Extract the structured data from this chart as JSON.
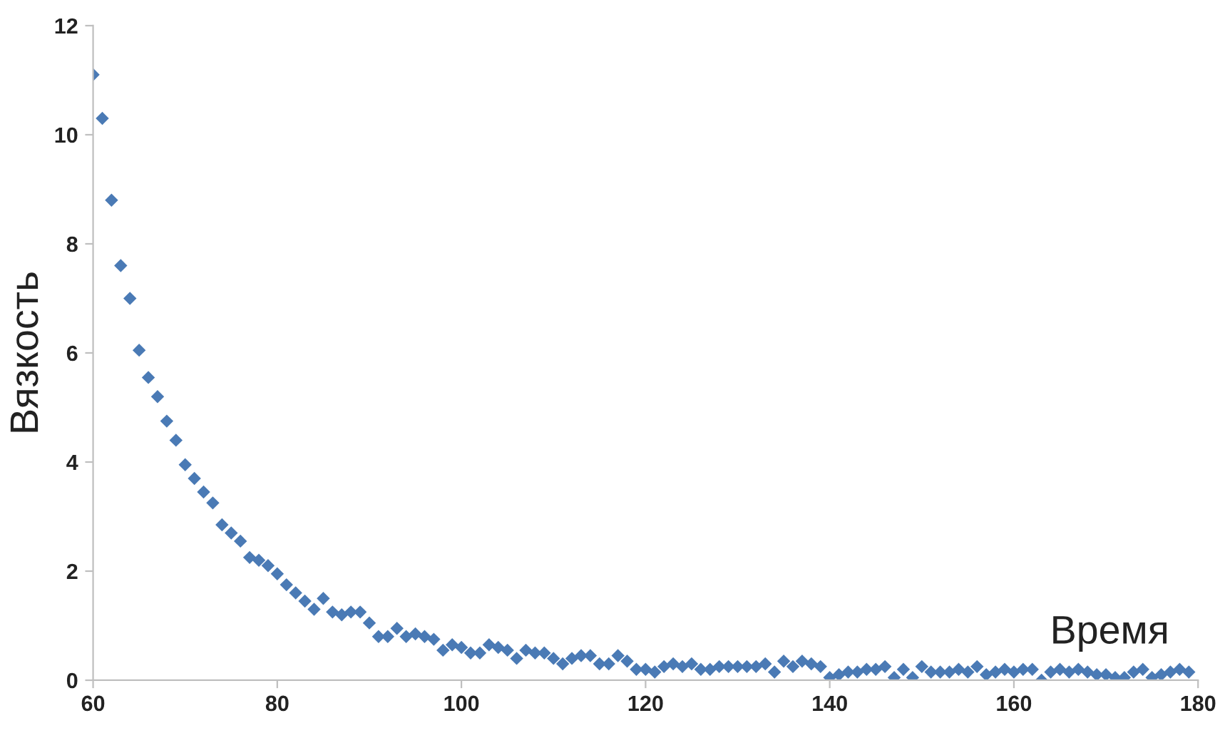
{
  "chart_data": {
    "type": "scatter",
    "xlabel": "Время",
    "ylabel": "Вязкость",
    "marker": "diamond",
    "grid": false,
    "xlim": [
      60,
      180
    ],
    "ylim": [
      0,
      12
    ],
    "xticks": [
      60,
      80,
      100,
      120,
      140,
      160,
      180
    ],
    "yticks": [
      0,
      2,
      4,
      6,
      8,
      10,
      12
    ],
    "x": [
      60,
      61,
      62,
      63,
      64,
      65,
      66,
      67,
      68,
      69,
      70,
      71,
      72,
      73,
      74,
      75,
      76,
      77,
      78,
      79,
      80,
      81,
      82,
      83,
      84,
      85,
      86,
      87,
      88,
      89,
      90,
      91,
      92,
      93,
      94,
      95,
      96,
      97,
      98,
      99,
      100,
      101,
      102,
      103,
      104,
      105,
      106,
      107,
      108,
      109,
      110,
      111,
      112,
      113,
      114,
      115,
      116,
      117,
      118,
      119,
      120,
      121,
      122,
      123,
      124,
      125,
      126,
      127,
      128,
      129,
      130,
      131,
      132,
      133,
      134,
      135,
      136,
      137,
      138,
      139,
      140,
      141,
      142,
      143,
      144,
      145,
      146,
      147,
      148,
      149,
      150,
      151,
      152,
      153,
      154,
      155,
      156,
      157,
      158,
      159,
      160,
      161,
      162,
      163,
      164,
      165,
      166,
      167,
      168,
      169,
      170,
      171,
      172,
      173,
      174,
      175,
      176,
      177,
      178,
      179
    ],
    "series": [
      {
        "color": "#4a7ab5",
        "values": [
          11.1,
          10.3,
          8.8,
          7.6,
          7.0,
          6.05,
          5.55,
          5.2,
          4.75,
          4.4,
          3.95,
          3.7,
          3.45,
          3.25,
          2.85,
          2.7,
          2.55,
          2.25,
          2.2,
          2.1,
          1.95,
          1.75,
          1.6,
          1.45,
          1.3,
          1.5,
          1.25,
          1.2,
          1.25,
          1.25,
          1.05,
          0.8,
          0.8,
          0.95,
          0.8,
          0.85,
          0.8,
          0.75,
          0.55,
          0.65,
          0.6,
          0.5,
          0.5,
          0.65,
          0.6,
          0.55,
          0.4,
          0.55,
          0.5,
          0.5,
          0.4,
          0.3,
          0.4,
          0.45,
          0.45,
          0.3,
          0.3,
          0.45,
          0.35,
          0.2,
          0.2,
          0.15,
          0.25,
          0.3,
          0.25,
          0.3,
          0.2,
          0.2,
          0.25,
          0.25,
          0.25,
          0.25,
          0.25,
          0.3,
          0.15,
          0.35,
          0.25,
          0.35,
          0.3,
          0.25,
          0.05,
          0.1,
          0.15,
          0.15,
          0.2,
          0.2,
          0.25,
          0.05,
          0.2,
          0.05,
          0.25,
          0.15,
          0.15,
          0.15,
          0.2,
          0.15,
          0.25,
          0.1,
          0.15,
          0.2,
          0.15,
          0.2,
          0.2,
          0.0,
          0.15,
          0.2,
          0.15,
          0.2,
          0.15,
          0.1,
          0.1,
          0.05,
          0.05,
          0.15,
          0.2,
          0.05,
          0.1,
          0.15,
          0.2,
          0.15
        ]
      }
    ]
  }
}
